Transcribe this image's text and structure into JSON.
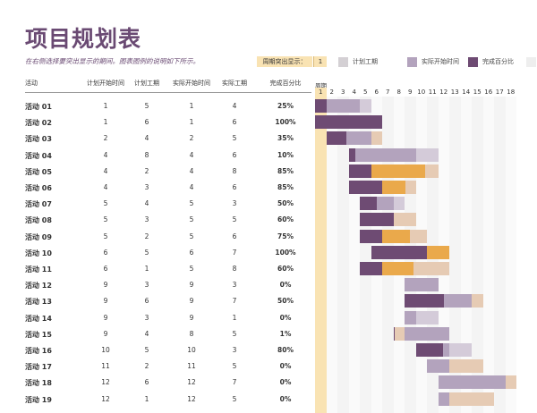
{
  "title": "项目规划表",
  "subtitle": "在右侧选择要突出显示的期间。图表图例的说明如下所示。",
  "highlight": {
    "label": "周期突出显示：",
    "value": "1"
  },
  "legend": [
    {
      "label": "计划工期",
      "color": "#d4d0d4"
    },
    {
      "label": "实际开始时间",
      "color": "#b3a3bd"
    },
    {
      "label": "完成百分比",
      "color": "#6e4b73"
    },
    {
      "label": "",
      "color": "#eeeeee"
    }
  ],
  "columns": {
    "activity": "活动",
    "plan_start": "计划开始时间",
    "plan_duration": "计划工期",
    "actual_start": "实际开始时间",
    "actual_duration": "实际工期",
    "percent": "完成百分比",
    "period": "周期"
  },
  "days": [
    "1",
    "2",
    "3",
    "4",
    "5",
    "6",
    "7",
    "8",
    "9",
    "10",
    "11",
    "12",
    "13",
    "14",
    "15",
    "16",
    "17",
    "18"
  ],
  "rows": [
    {
      "name": "活动 01",
      "ps": "1",
      "pd": "5",
      "as": "1",
      "ad": "4",
      "pct": "25%"
    },
    {
      "name": "活动 02",
      "ps": "1",
      "pd": "6",
      "as": "1",
      "ad": "6",
      "pct": "100%"
    },
    {
      "name": "活动 03",
      "ps": "2",
      "pd": "4",
      "as": "2",
      "ad": "5",
      "pct": "35%"
    },
    {
      "name": "活动 04",
      "ps": "4",
      "pd": "8",
      "as": "4",
      "ad": "6",
      "pct": "10%"
    },
    {
      "name": "活动 05",
      "ps": "4",
      "pd": "2",
      "as": "4",
      "ad": "8",
      "pct": "85%"
    },
    {
      "name": "活动 06",
      "ps": "4",
      "pd": "3",
      "as": "4",
      "ad": "6",
      "pct": "85%"
    },
    {
      "name": "活动 07",
      "ps": "5",
      "pd": "4",
      "as": "5",
      "ad": "3",
      "pct": "50%"
    },
    {
      "name": "活动 08",
      "ps": "5",
      "pd": "3",
      "as": "5",
      "ad": "5",
      "pct": "60%"
    },
    {
      "name": "活动 09",
      "ps": "5",
      "pd": "2",
      "as": "5",
      "ad": "6",
      "pct": "75%"
    },
    {
      "name": "活动 10",
      "ps": "6",
      "pd": "5",
      "as": "6",
      "ad": "7",
      "pct": "100%"
    },
    {
      "name": "活动 11",
      "ps": "6",
      "pd": "1",
      "as": "5",
      "ad": "8",
      "pct": "60%"
    },
    {
      "name": "活动 12",
      "ps": "9",
      "pd": "3",
      "as": "9",
      "ad": "3",
      "pct": "0%"
    },
    {
      "name": "活动 13",
      "ps": "9",
      "pd": "6",
      "as": "9",
      "ad": "7",
      "pct": "50%"
    },
    {
      "name": "活动 14",
      "ps": "9",
      "pd": "3",
      "as": "9",
      "ad": "1",
      "pct": "0%"
    },
    {
      "name": "活动 15",
      "ps": "9",
      "pd": "4",
      "as": "8",
      "ad": "5",
      "pct": "1%"
    },
    {
      "name": "活动 16",
      "ps": "10",
      "pd": "5",
      "as": "10",
      "ad": "3",
      "pct": "80%"
    },
    {
      "name": "活动 17",
      "ps": "11",
      "pd": "2",
      "as": "11",
      "ad": "5",
      "pct": "0%"
    },
    {
      "name": "活动 18",
      "ps": "12",
      "pd": "6",
      "as": "12",
      "ad": "7",
      "pct": "0%"
    },
    {
      "name": "活动 19",
      "ps": "12",
      "pd": "1",
      "as": "12",
      "ad": "5",
      "pct": "0%"
    }
  ],
  "colors": {
    "accent": "#6a4a73",
    "plan": "#b3a3bd",
    "actual": "#e3b485",
    "complete": "#6e4b73",
    "beyond": "#eaa94b",
    "highlight": "#f9e3b3"
  }
}
